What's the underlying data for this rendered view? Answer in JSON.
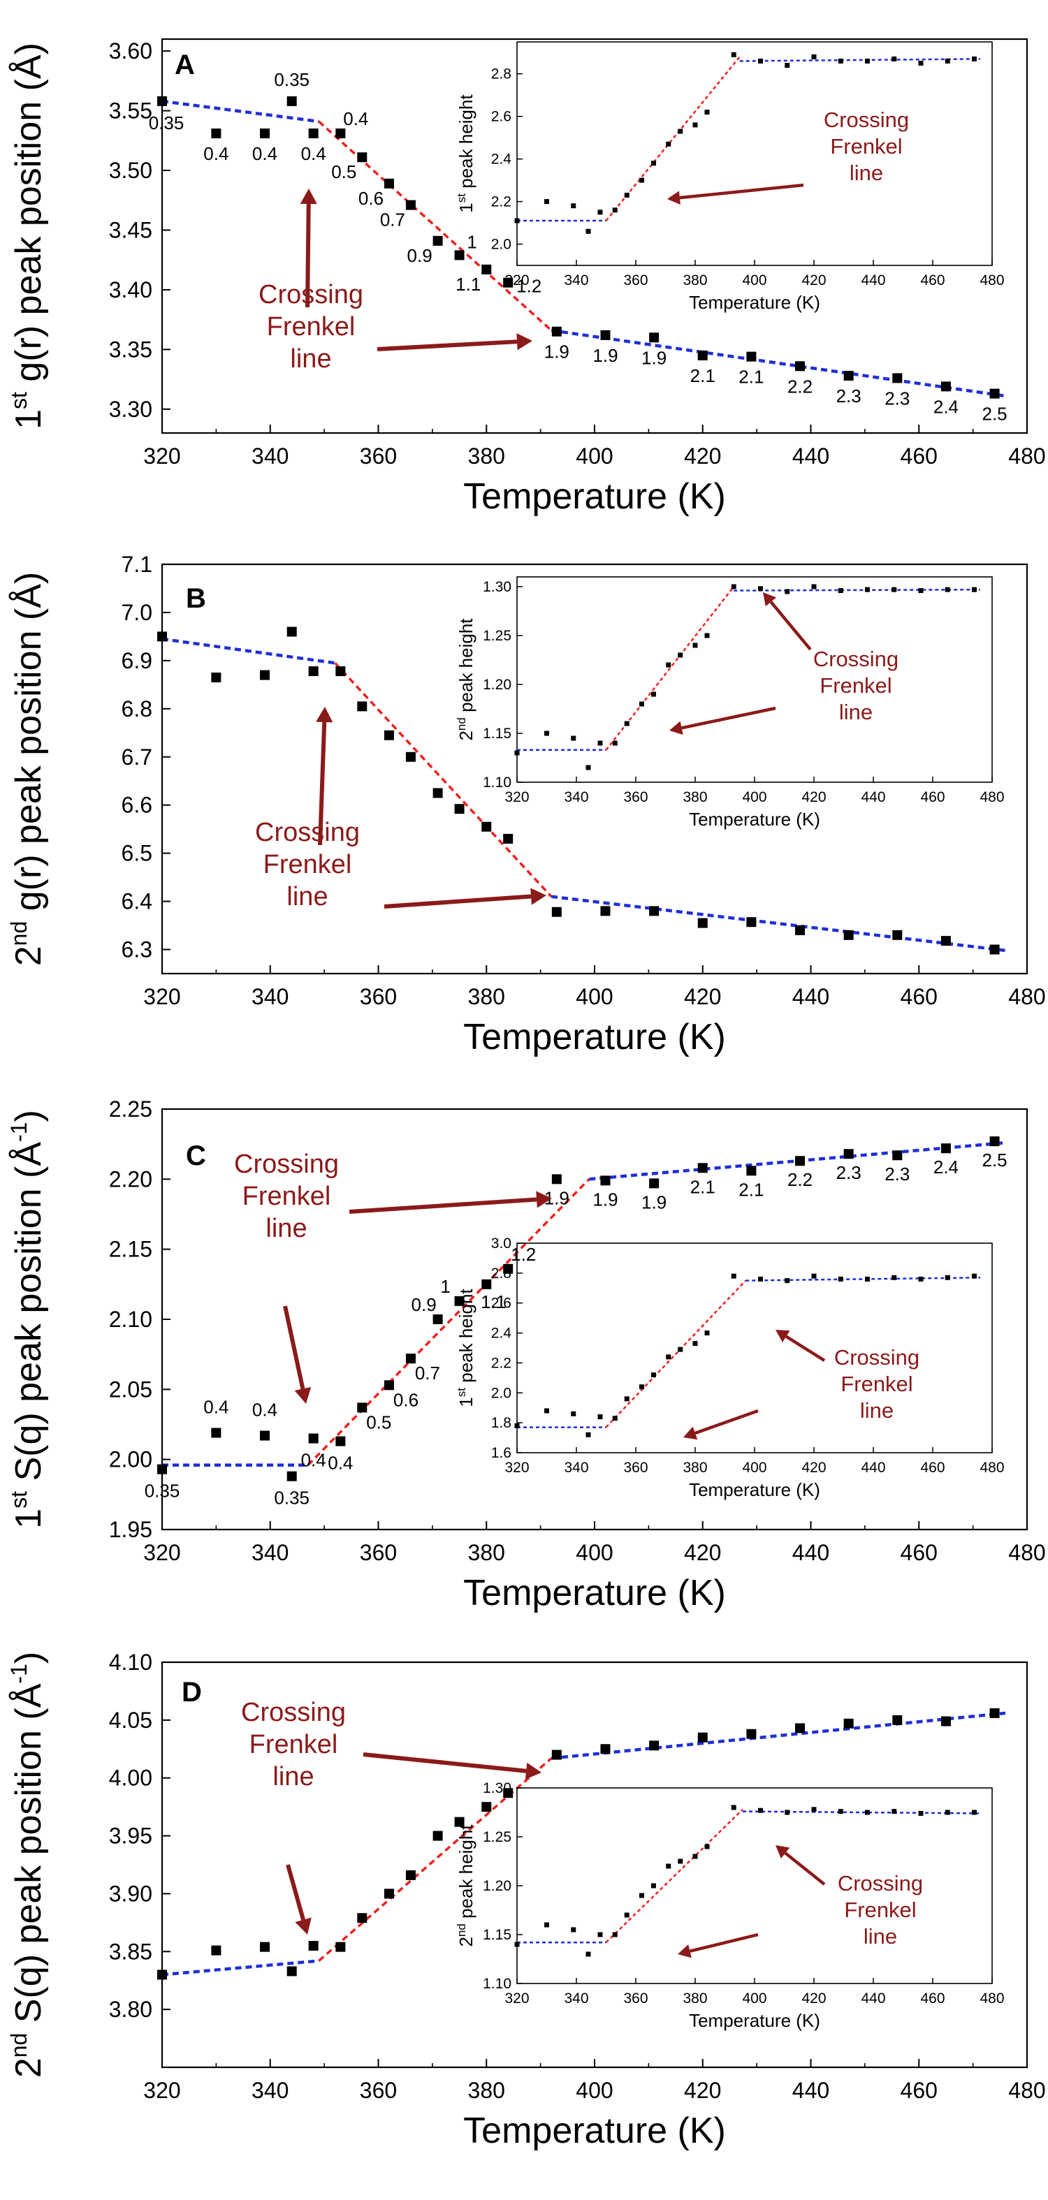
{
  "annotation": {
    "text_lines": [
      "Crossing",
      "Frenkel",
      "line"
    ],
    "color": "#8b1a1a"
  },
  "colors": {
    "blue_fit": "#1f2fd6",
    "red_fit": "#f02020",
    "marker": "#000000"
  },
  "chart_data": [
    {
      "id": "A",
      "type": "scatter",
      "panel_label": "A",
      "ylabel": {
        "prefix": "1",
        "sup": "st",
        "rest": " g(r) peak position (Å)"
      },
      "xlabel": "Temperature (K)",
      "xlim": [
        320,
        480
      ],
      "ylim": [
        3.28,
        3.61
      ],
      "xticks": [
        320,
        340,
        360,
        380,
        400,
        420,
        440,
        460,
        480
      ],
      "yticks": [
        3.3,
        3.35,
        3.4,
        3.45,
        3.5,
        3.55,
        3.6
      ],
      "ytick_labels": [
        "3.30",
        "3.35",
        "3.40",
        "3.45",
        "3.50",
        "3.55",
        "3.60"
      ],
      "x": [
        320,
        330,
        339,
        344,
        348,
        353,
        357,
        362,
        366,
        371,
        375,
        380,
        384,
        393,
        402,
        411,
        420,
        429,
        438,
        447,
        456,
        465,
        474
      ],
      "y": [
        3.558,
        3.531,
        3.531,
        3.558,
        3.531,
        3.531,
        3.511,
        3.489,
        3.471,
        3.441,
        3.429,
        3.417,
        3.406,
        3.365,
        3.362,
        3.36,
        3.345,
        3.344,
        3.336,
        3.328,
        3.326,
        3.319,
        3.313
      ],
      "point_labels": [
        "0.35",
        "0.4",
        "0.4",
        "0.35",
        "0.4",
        "0.4",
        "0.5",
        "0.6",
        "0.7",
        "0.9",
        "1",
        "1.1",
        "1.2",
        "1.9",
        "1.9",
        "1.9",
        "2.1",
        "2.1",
        "2.2",
        "2.3",
        "2.3",
        "2.4",
        "2.5"
      ],
      "fits": [
        {
          "style": "blue",
          "x": [
            320,
            349
          ],
          "y": [
            3.558,
            3.541
          ]
        },
        {
          "style": "red",
          "x": [
            349,
            392
          ],
          "y": [
            3.541,
            3.366
          ]
        },
        {
          "style": "blue",
          "x": [
            392,
            476
          ],
          "y": [
            3.366,
            3.311
          ]
        }
      ],
      "inset": {
        "xlabel": "Temperature (K)",
        "ylabel": {
          "prefix": "1",
          "sup": "st",
          "rest": " peak height"
        },
        "xlim": [
          320,
          480
        ],
        "ylim": [
          1.9,
          2.95
        ],
        "xticks": [
          320,
          340,
          360,
          380,
          400,
          420,
          440,
          460,
          480
        ],
        "yticks": [
          2.0,
          2.2,
          2.4,
          2.6,
          2.8
        ],
        "ytick_labels": [
          "2.0",
          "2.2",
          "2.4",
          "2.6",
          "2.8"
        ],
        "x": [
          320,
          330,
          339,
          344,
          348,
          353,
          357,
          362,
          366,
          371,
          375,
          380,
          384,
          393,
          402,
          411,
          420,
          429,
          438,
          447,
          456,
          465,
          474
        ],
        "y": [
          2.11,
          2.2,
          2.18,
          2.06,
          2.15,
          2.16,
          2.23,
          2.3,
          2.38,
          2.47,
          2.53,
          2.56,
          2.62,
          2.89,
          2.86,
          2.84,
          2.88,
          2.86,
          2.86,
          2.87,
          2.85,
          2.86,
          2.87
        ],
        "fits": [
          {
            "style": "blue",
            "x": [
              320,
              350
            ],
            "y": [
              2.11,
              2.11
            ]
          },
          {
            "style": "red",
            "x": [
              350,
              395
            ],
            "y": [
              2.11,
              2.88
            ]
          },
          {
            "style": "blue",
            "x": [
              395,
              476
            ],
            "y": [
              2.86,
              2.87
            ]
          }
        ]
      }
    },
    {
      "id": "B",
      "type": "scatter",
      "panel_label": "B",
      "ylabel": {
        "prefix": "2",
        "sup": "nd",
        "rest": " g(r) peak position (Å)"
      },
      "xlabel": "Temperature (K)",
      "xlim": [
        320,
        480
      ],
      "ylim": [
        6.25,
        7.1
      ],
      "xticks": [
        320,
        340,
        360,
        380,
        400,
        420,
        440,
        460,
        480
      ],
      "yticks": [
        6.3,
        6.4,
        6.5,
        6.6,
        6.7,
        6.8,
        6.9,
        7.0,
        7.1
      ],
      "ytick_labels": [
        "6.3",
        "6.4",
        "6.5",
        "6.6",
        "6.7",
        "6.8",
        "6.9",
        "7.0",
        "7.1"
      ],
      "x": [
        320,
        330,
        339,
        344,
        348,
        353,
        357,
        362,
        366,
        371,
        375,
        380,
        384,
        393,
        402,
        411,
        420,
        429,
        438,
        447,
        456,
        465,
        474
      ],
      "y": [
        6.95,
        6.865,
        6.87,
        6.96,
        6.878,
        6.878,
        6.805,
        6.745,
        6.7,
        6.625,
        6.592,
        6.555,
        6.53,
        6.378,
        6.38,
        6.38,
        6.355,
        6.357,
        6.34,
        6.33,
        6.33,
        6.318,
        6.3
      ],
      "fits": [
        {
          "style": "blue",
          "x": [
            320,
            352
          ],
          "y": [
            6.945,
            6.895
          ]
        },
        {
          "style": "red",
          "x": [
            352,
            392
          ],
          "y": [
            6.895,
            6.41
          ]
        },
        {
          "style": "blue",
          "x": [
            392,
            476
          ],
          "y": [
            6.41,
            6.298
          ]
        }
      ],
      "inset": {
        "xlabel": "Temperature (K)",
        "ylabel": {
          "prefix": "2",
          "sup": "nd",
          "rest": " peak height"
        },
        "xlim": [
          320,
          480
        ],
        "ylim": [
          1.1,
          1.31
        ],
        "xticks": [
          320,
          340,
          360,
          380,
          400,
          420,
          440,
          460,
          480
        ],
        "yticks": [
          1.1,
          1.15,
          1.2,
          1.25,
          1.3
        ],
        "ytick_labels": [
          "1.10",
          "1.15",
          "1.20",
          "1.25",
          "1.30"
        ],
        "x": [
          320,
          330,
          339,
          344,
          348,
          353,
          357,
          362,
          366,
          371,
          375,
          380,
          384,
          393,
          402,
          411,
          420,
          429,
          438,
          447,
          456,
          465,
          474
        ],
        "y": [
          1.13,
          1.15,
          1.145,
          1.115,
          1.14,
          1.14,
          1.16,
          1.18,
          1.19,
          1.22,
          1.23,
          1.24,
          1.25,
          1.3,
          1.298,
          1.295,
          1.3,
          1.296,
          1.297,
          1.297,
          1.296,
          1.297,
          1.297
        ],
        "fits": [
          {
            "style": "blue",
            "x": [
              320,
              350
            ],
            "y": [
              1.133,
              1.133
            ]
          },
          {
            "style": "red",
            "x": [
              350,
              393
            ],
            "y": [
              1.133,
              1.3
            ]
          },
          {
            "style": "blue",
            "x": [
              393,
              476
            ],
            "y": [
              1.296,
              1.297
            ]
          }
        ]
      }
    },
    {
      "id": "C",
      "type": "scatter",
      "panel_label": "C",
      "ylabel": {
        "prefix": "1",
        "sup": "st",
        "rest": " S(q) peak position (Å",
        "sup2": "-1",
        "rest2": ")"
      },
      "xlabel": "Temperature (K)",
      "xlim": [
        320,
        480
      ],
      "ylim": [
        1.95,
        2.25
      ],
      "xticks": [
        320,
        340,
        360,
        380,
        400,
        420,
        440,
        460,
        480
      ],
      "yticks": [
        1.95,
        2.0,
        2.05,
        2.1,
        2.15,
        2.2,
        2.25
      ],
      "ytick_labels": [
        "1.95",
        "2.00",
        "2.05",
        "2.10",
        "2.15",
        "2.20",
        "2.25"
      ],
      "x": [
        320,
        330,
        339,
        344,
        348,
        353,
        357,
        362,
        366,
        371,
        375,
        380,
        384,
        393,
        402,
        411,
        420,
        429,
        438,
        447,
        456,
        465,
        474
      ],
      "y": [
        1.993,
        2.019,
        2.017,
        1.988,
        2.015,
        2.013,
        2.037,
        2.053,
        2.072,
        2.1,
        2.113,
        2.125,
        2.136,
        2.2,
        2.199,
        2.197,
        2.208,
        2.206,
        2.213,
        2.218,
        2.217,
        2.222,
        2.227
      ],
      "point_labels": [
        "0.35",
        "0.4",
        "0.4",
        "0.35",
        "0.4",
        "0.4",
        "0.5",
        "0.6",
        "0.7",
        "0.9",
        "1",
        "1.1",
        "1.2",
        "1.9",
        "1.9",
        "1.9",
        "2.1",
        "2.1",
        "2.2",
        "2.3",
        "2.3",
        "2.4",
        "2.5"
      ],
      "fits": [
        {
          "style": "blue",
          "x": [
            320,
            347
          ],
          "y": [
            1.996,
            1.996
          ]
        },
        {
          "style": "red",
          "x": [
            347,
            399
          ],
          "y": [
            1.996,
            2.2
          ]
        },
        {
          "style": "blue",
          "x": [
            399,
            476
          ],
          "y": [
            2.2,
            2.226
          ]
        }
      ],
      "inset": {
        "xlabel": "Temperature (K)",
        "ylabel": {
          "prefix": "1",
          "sup": "st",
          "rest": " peak height"
        },
        "xlim": [
          320,
          480
        ],
        "ylim": [
          1.6,
          3.0
        ],
        "xticks": [
          320,
          340,
          360,
          380,
          400,
          420,
          440,
          460,
          480
        ],
        "yticks": [
          1.6,
          1.8,
          2.0,
          2.2,
          2.4,
          2.6,
          2.8,
          3.0
        ],
        "ytick_labels": [
          "1.6",
          "1.8",
          "2.0",
          "2.2",
          "2.4",
          "2.6",
          "2.8",
          "3.0"
        ],
        "x": [
          320,
          330,
          339,
          344,
          348,
          353,
          357,
          362,
          366,
          371,
          375,
          380,
          384,
          393,
          402,
          411,
          420,
          429,
          438,
          447,
          456,
          465,
          474
        ],
        "y": [
          1.78,
          1.88,
          1.86,
          1.72,
          1.84,
          1.83,
          1.96,
          2.04,
          2.12,
          2.24,
          2.29,
          2.33,
          2.4,
          2.78,
          2.76,
          2.75,
          2.78,
          2.76,
          2.76,
          2.77,
          2.76,
          2.77,
          2.78
        ],
        "fits": [
          {
            "style": "blue",
            "x": [
              320,
              350
            ],
            "y": [
              1.77,
              1.77
            ]
          },
          {
            "style": "red",
            "x": [
              350,
              397
            ],
            "y": [
              1.77,
              2.75
            ]
          },
          {
            "style": "blue",
            "x": [
              397,
              476
            ],
            "y": [
              2.75,
              2.77
            ]
          }
        ]
      }
    },
    {
      "id": "D",
      "type": "scatter",
      "panel_label": "D",
      "ylabel": {
        "prefix": "2",
        "sup": "nd",
        "rest": " S(q) peak position (Å",
        "sup2": "-1",
        "rest2": ")"
      },
      "xlabel": "Temperature (K)",
      "xlim": [
        320,
        480
      ],
      "ylim": [
        3.75,
        4.1
      ],
      "xticks": [
        320,
        340,
        360,
        380,
        400,
        420,
        440,
        460,
        480
      ],
      "yticks": [
        3.8,
        3.85,
        3.9,
        3.95,
        4.0,
        4.05,
        4.1
      ],
      "ytick_labels": [
        "3.80",
        "3.85",
        "3.90",
        "3.95",
        "4.00",
        "4.05",
        "4.10"
      ],
      "x": [
        320,
        330,
        339,
        344,
        348,
        353,
        357,
        362,
        366,
        371,
        375,
        380,
        384,
        393,
        402,
        411,
        420,
        429,
        438,
        447,
        456,
        465,
        474
      ],
      "y": [
        3.83,
        3.851,
        3.854,
        3.833,
        3.855,
        3.854,
        3.879,
        3.9,
        3.916,
        3.95,
        3.962,
        3.975,
        3.987,
        4.02,
        4.025,
        4.028,
        4.035,
        4.038,
        4.043,
        4.047,
        4.05,
        4.049,
        4.056
      ],
      "fits": [
        {
          "style": "blue",
          "x": [
            320,
            349
          ],
          "y": [
            3.83,
            3.842
          ]
        },
        {
          "style": "red",
          "x": [
            349,
            392
          ],
          "y": [
            3.842,
            4.017
          ]
        },
        {
          "style": "blue",
          "x": [
            392,
            476
          ],
          "y": [
            4.017,
            4.056
          ]
        }
      ],
      "inset": {
        "xlabel": "Temperature (K)",
        "ylabel": {
          "prefix": "2",
          "sup": "nd",
          "rest": " peak height"
        },
        "xlim": [
          320,
          480
        ],
        "ylim": [
          1.1,
          1.3
        ],
        "xticks": [
          320,
          340,
          360,
          380,
          400,
          420,
          440,
          460,
          480
        ],
        "yticks": [
          1.1,
          1.15,
          1.2,
          1.25,
          1.3
        ],
        "ytick_labels": [
          "1.10",
          "1.15",
          "1.20",
          "1.25",
          "1.30"
        ],
        "x": [
          320,
          330,
          339,
          344,
          348,
          353,
          357,
          362,
          366,
          371,
          375,
          380,
          384,
          393,
          402,
          411,
          420,
          429,
          438,
          447,
          456,
          465,
          474
        ],
        "y": [
          1.14,
          1.16,
          1.155,
          1.13,
          1.15,
          1.15,
          1.17,
          1.19,
          1.2,
          1.22,
          1.225,
          1.23,
          1.24,
          1.28,
          1.277,
          1.275,
          1.278,
          1.276,
          1.275,
          1.276,
          1.274,
          1.275,
          1.275
        ],
        "fits": [
          {
            "style": "blue",
            "x": [
              320,
              350
            ],
            "y": [
              1.142,
              1.142
            ]
          },
          {
            "style": "red",
            "x": [
              350,
              396
            ],
            "y": [
              1.142,
              1.278
            ]
          },
          {
            "style": "blue",
            "x": [
              396,
              476
            ],
            "y": [
              1.276,
              1.274
            ]
          }
        ]
      }
    }
  ]
}
